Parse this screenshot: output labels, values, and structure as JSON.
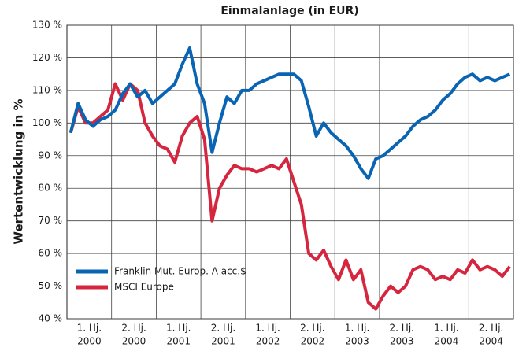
{
  "chart_data": {
    "type": "line",
    "title": "Einmalanlage (in EUR)",
    "y_label": "Wertentwicklung in %",
    "period_labels": [
      "1. Hj.",
      "2. Hj.",
      "1. Hj.",
      "2. Hj.",
      "1. Hj.",
      "2. Hj.",
      "1. Hj.",
      "2. Hj.",
      "1. Hj.",
      "2. Hj."
    ],
    "year_labels": [
      "2000",
      "2000",
      "2001",
      "2001",
      "2002",
      "2002",
      "2003",
      "2003",
      "2004",
      "2004"
    ],
    "ylim": [
      40,
      130
    ],
    "yticks": [
      {
        "value": 40,
        "label": "40 %"
      },
      {
        "value": 50,
        "label": "50 %"
      },
      {
        "value": 60,
        "label": "60 %"
      },
      {
        "value": 70,
        "label": "70 %"
      },
      {
        "value": 80,
        "label": "80 %"
      },
      {
        "value": 90,
        "label": "90 %"
      },
      {
        "value": 100,
        "label": "100 %"
      },
      {
        "value": 110,
        "label": "110 %"
      },
      {
        "value": 120,
        "label": "120 %"
      },
      {
        "value": 130,
        "label": "130 %"
      }
    ],
    "grid": true,
    "legend": "lower left",
    "series": [
      {
        "name": "Franklin Mut. Europ. A acc.$",
        "color": "#0a64b4",
        "values": [
          97,
          106,
          101,
          99,
          101,
          102,
          104,
          109,
          112,
          108,
          110,
          106,
          108,
          110,
          112,
          118,
          123,
          112,
          106,
          91,
          100,
          108,
          106,
          110,
          110,
          112,
          113,
          114,
          115,
          115,
          115,
          113,
          105,
          96,
          100,
          97,
          95,
          93,
          90,
          86,
          83,
          89,
          90,
          92,
          94,
          96,
          99,
          101,
          102,
          104,
          107,
          109,
          112,
          114,
          115,
          113,
          114,
          113,
          114,
          115
        ]
      },
      {
        "name": "MSCI Europe",
        "color": "#d5253f",
        "values": [
          97,
          105,
          100,
          100,
          102,
          104,
          112,
          107,
          112,
          110,
          100,
          96,
          93,
          92,
          88,
          96,
          100,
          102,
          95,
          70,
          80,
          84,
          87,
          86,
          86,
          85,
          86,
          87,
          86,
          89,
          82,
          75,
          60,
          58,
          61,
          56,
          52,
          58,
          52,
          55,
          45,
          43,
          47,
          50,
          48,
          50,
          55,
          56,
          55,
          52,
          53,
          52,
          55,
          54,
          58,
          55,
          56,
          55,
          53,
          56
        ]
      }
    ]
  }
}
